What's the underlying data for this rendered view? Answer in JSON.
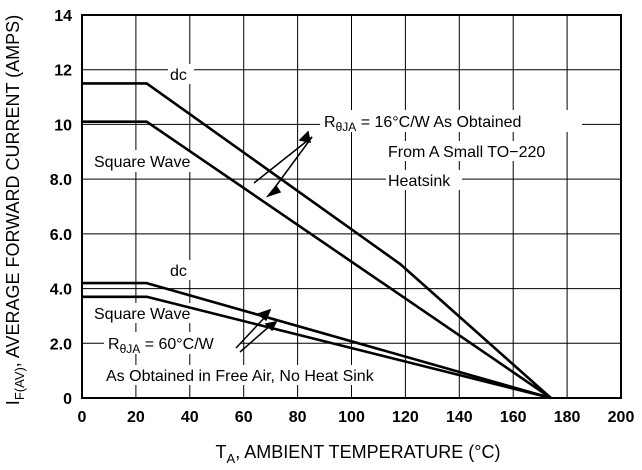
{
  "chart_data": {
    "type": "line",
    "xlabel_main": "T",
    "xlabel_sub": "A",
    "xlabel_rest": ", AMBIENT TEMPERATURE (°C)",
    "ylabel_main": "I",
    "ylabel_sub": "F(AV)",
    "ylabel_rest": ", AVERAGE FORWARD CURRENT (AMPS)",
    "xlim": [
      0,
      200
    ],
    "ylim": [
      0,
      14
    ],
    "grid": true,
    "x_ticks": [
      0,
      20,
      40,
      60,
      80,
      100,
      120,
      140,
      160,
      180,
      200
    ],
    "y_ticks": [
      0,
      2,
      4,
      6,
      8,
      10,
      12,
      14
    ],
    "x_tick_labels": [
      "0",
      "20",
      "40",
      "60",
      "80",
      "100",
      "120",
      "140",
      "160",
      "180",
      "200"
    ],
    "y_tick_labels": [
      "0",
      "2.0",
      "4.0",
      "6.0",
      "8.0",
      "10",
      "12",
      "14"
    ],
    "series": [
      {
        "name": "dc",
        "x": [
          0,
          24,
          118,
          174
        ],
        "y": [
          11.5,
          11.5,
          4.9,
          0
        ]
      },
      {
        "name": "Square Wave",
        "x": [
          0,
          24,
          174
        ],
        "y": [
          10.1,
          10.1,
          0
        ]
      },
      {
        "name": "dc",
        "x": [
          0,
          24,
          174
        ],
        "y": [
          4.2,
          4.2,
          0
        ]
      },
      {
        "name": "Square Wave",
        "x": [
          0,
          24,
          174
        ],
        "y": [
          3.7,
          3.7,
          0
        ]
      }
    ],
    "annotations": {
      "dc_upper": "dc",
      "square_upper": "Square Wave",
      "dc_lower": "dc",
      "square_lower": "Square Wave",
      "r1_prefix": "R",
      "r1_sub": "θJA",
      "r1_rest": " =  16°C/W As Obtained",
      "r1_line2": "From A Small TO−220",
      "r1_line3": "Heatsink",
      "r2_prefix": "R",
      "r2_sub": "θJA",
      "r2_rest": " = 60°C/W",
      "r2_line2": "As Obtained in Free Air, No Heat Sink"
    },
    "colors": {
      "line": "#000000",
      "grid": "#000000",
      "background": "#ffffff"
    }
  }
}
